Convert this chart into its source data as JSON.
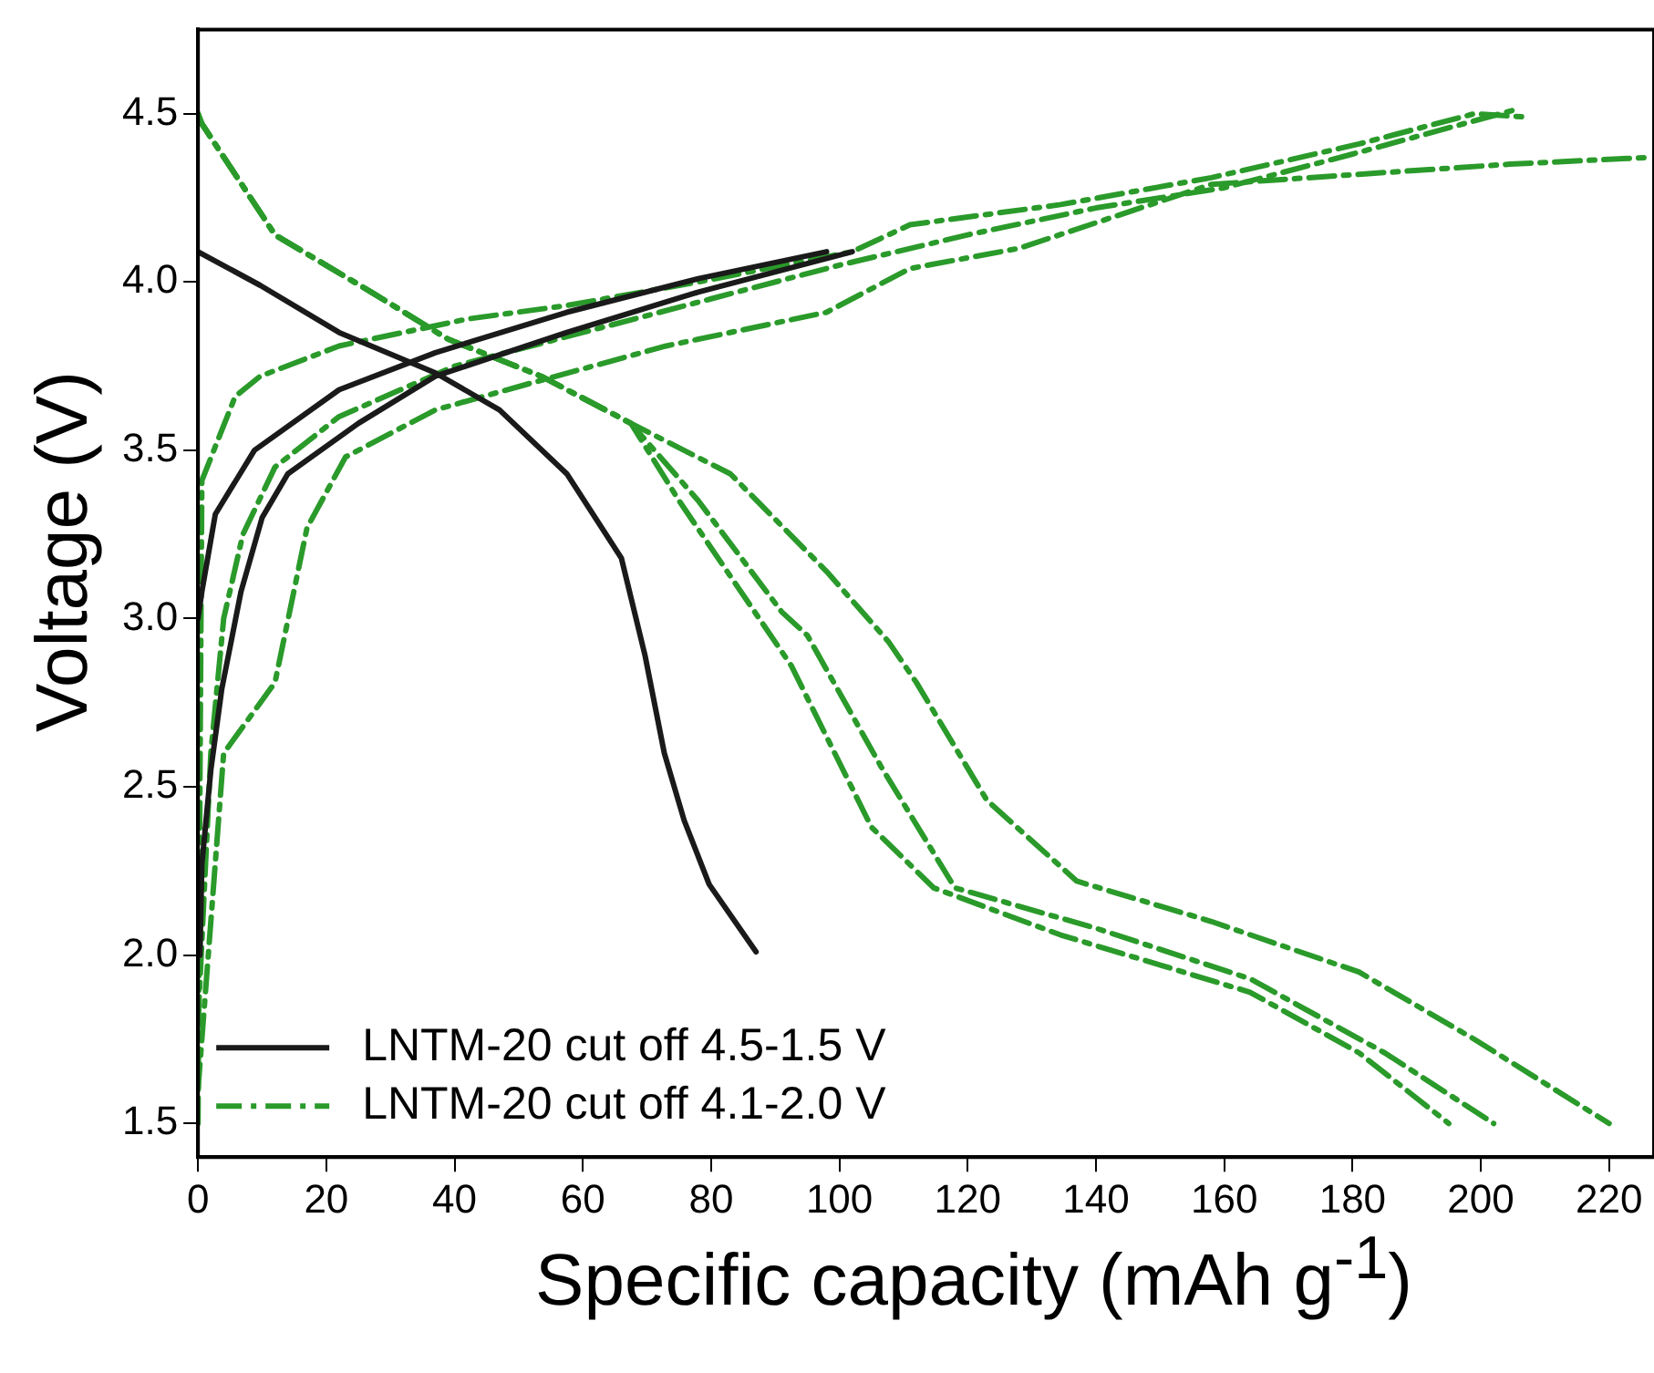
{
  "chart_data": {
    "type": "line",
    "xlabel": "Specific capacity (mAh g$^{-1}$)",
    "ylabel": "Voltage (V)",
    "xlim": [
      0,
      227
    ],
    "ylim": [
      1.4,
      4.75
    ],
    "xticks": [
      0,
      20,
      40,
      60,
      80,
      100,
      120,
      140,
      160,
      180,
      200,
      220
    ],
    "yticks": [
      {
        "value": 1.5,
        "label": "1.5"
      },
      {
        "value": 2,
        "label": "2.0"
      },
      {
        "value": 2.5,
        "label": "2.5"
      },
      {
        "value": 3,
        "label": "3.0"
      },
      {
        "value": 3.5,
        "label": "3.5"
      },
      {
        "value": 4,
        "label": "4.0"
      },
      {
        "value": 4.5,
        "label": "4.5"
      }
    ],
    "grid": false,
    "legend": "bottom left",
    "marker": "none",
    "series": [
      {
        "name": "LNTM-20 cut off 4.5-1.5 V",
        "color": "#1a1a1a",
        "line_style": "solid",
        "x": [
          0,
          9.7,
          22,
          37,
          47,
          57.5,
          66,
          69.7,
          72.7,
          75.8,
          79.7,
          87
        ],
        "values": [
          4.09,
          3.99,
          3.85,
          3.73,
          3.62,
          3.43,
          3.18,
          2.89,
          2.6,
          2.4,
          2.21,
          2.01
        ]
      },
      {
        "color": "#1a1a1a",
        "line_style": "solid",
        "x": [
          0,
          0.6,
          2.7,
          8.8,
          22,
          37,
          57.5,
          78,
          98
        ],
        "values": [
          3.0,
          3.08,
          3.31,
          3.5,
          3.68,
          3.79,
          3.91,
          4.01,
          4.09
        ]
      },
      {
        "color": "#1a1a1a",
        "line_style": "solid",
        "x": [
          0.3,
          0.6,
          2,
          3.7,
          6.7,
          10,
          14,
          25,
          37,
          57.5,
          78,
          102
        ],
        "values": [
          2.0,
          2.27,
          2.55,
          2.79,
          3.08,
          3.3,
          3.43,
          3.58,
          3.72,
          3.85,
          3.97,
          4.09
        ]
      },
      {
        "name": "LNTM-20 cut off 4.1-2.0 V",
        "color": "#2a9a2a",
        "line_style": "dashed",
        "x": [
          0,
          0.6,
          12,
          27,
          39,
          53.5,
          67.5,
          83,
          98,
          107.7,
          112,
          123,
          137,
          158,
          181,
          199,
          220
        ],
        "values": [
          4.5,
          4.47,
          4.14,
          3.97,
          3.83,
          3.72,
          3.58,
          3.43,
          3.14,
          2.93,
          2.81,
          2.46,
          2.22,
          2.1,
          1.95,
          1.75,
          1.5
        ]
      },
      {
        "color": "#2a9a2a",
        "line_style": "dashed",
        "x": [
          0,
          0.6,
          12,
          27,
          39,
          53.5,
          67.5,
          78,
          91,
          95,
          106.5,
          118,
          140,
          164,
          185,
          202
        ],
        "values": [
          4.5,
          4.47,
          4.14,
          3.97,
          3.83,
          3.72,
          3.58,
          3.35,
          3.02,
          2.95,
          2.56,
          2.2,
          2.08,
          1.93,
          1.71,
          1.5
        ]
      },
      {
        "color": "#2a9a2a",
        "line_style": "dashed",
        "x": [
          0,
          0.6,
          12,
          27,
          39,
          53.5,
          67.5,
          75,
          92.5,
          105,
          114.7,
          134.5,
          164,
          181,
          195
        ],
        "values": [
          4.5,
          4.47,
          4.14,
          3.97,
          3.83,
          3.72,
          3.58,
          3.35,
          2.86,
          2.38,
          2.2,
          2.06,
          1.89,
          1.71,
          1.5
        ]
      },
      {
        "color": "#2a9a2a",
        "line_style": "dashed",
        "x": [
          0,
          0.3,
          0.6,
          5.8,
          9.7,
          22,
          42,
          57.5,
          78,
          102,
          111,
          134.5,
          158,
          181,
          199,
          207
        ],
        "values": [
          1.5,
          2.5,
          3.41,
          3.66,
          3.72,
          3.81,
          3.89,
          3.93,
          4.0,
          4.09,
          4.17,
          4.23,
          4.31,
          4.41,
          4.5,
          4.49
        ]
      },
      {
        "color": "#2a9a2a",
        "line_style": "dashed",
        "x": [
          0,
          2,
          4,
          7,
          12,
          22,
          40,
          60,
          80,
          100,
          120,
          140,
          160,
          180,
          205
        ],
        "values": [
          1.8,
          2.6,
          3.0,
          3.25,
          3.45,
          3.6,
          3.75,
          3.85,
          3.95,
          4.05,
          4.14,
          4.22,
          4.28,
          4.38,
          4.51
        ]
      },
      {
        "color": "#2a9a2a",
        "line_style": "dashed",
        "x": [
          0,
          4,
          12,
          17,
          23,
          37,
          52,
          73,
          98,
          111,
          128,
          158,
          181,
          204.5,
          226
        ],
        "values": [
          1.6,
          2.6,
          2.81,
          3.27,
          3.48,
          3.62,
          3.7,
          3.81,
          3.91,
          4.04,
          4.1,
          4.29,
          4.32,
          4.35,
          4.37
        ]
      }
    ]
  }
}
